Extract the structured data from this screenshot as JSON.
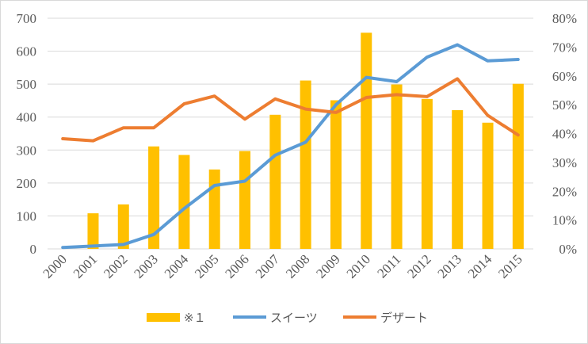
{
  "chart_data": {
    "type": "bar+line",
    "categories": [
      "2000",
      "2001",
      "2002",
      "2003",
      "2004",
      "2005",
      "2006",
      "2007",
      "2008",
      "2009",
      "2010",
      "2011",
      "2012",
      "2013",
      "2014",
      "2015"
    ],
    "left_axis": {
      "ylim": [
        0,
        700
      ],
      "ticks": [
        "0",
        "100",
        "200",
        "300",
        "400",
        "500",
        "600",
        "700"
      ]
    },
    "right_axis": {
      "ylim": [
        0,
        80
      ],
      "ticks": [
        "0%",
        "10%",
        "20%",
        "30%",
        "40%",
        "50%",
        "60%",
        "70%",
        "80%"
      ]
    },
    "series": [
      {
        "name": "※１",
        "type": "bar",
        "axis": "left",
        "color": "#ffc000",
        "values": [
          0,
          108,
          135,
          311,
          285,
          241,
          297,
          407,
          511,
          451,
          656,
          499,
          455,
          421,
          383,
          501
        ]
      },
      {
        "name": "スイーツ",
        "type": "line",
        "axis": "right",
        "color": "#5b9bd5",
        "values": [
          0.5,
          1.0,
          1.5,
          5.0,
          14.0,
          22.0,
          23.5,
          32.5,
          37.0,
          50.0,
          59.5,
          58.0,
          66.5,
          70.8,
          65.2,
          65.7
        ]
      },
      {
        "name": "デザート",
        "type": "line",
        "axis": "right",
        "color": "#ed7d31",
        "values": [
          38.2,
          37.5,
          42.0,
          42.0,
          50.3,
          53.0,
          45.0,
          52.0,
          48.5,
          47.3,
          52.5,
          53.5,
          52.8,
          59.0,
          46.3,
          39.5
        ]
      }
    ],
    "legend_position": "bottom",
    "grid": true
  }
}
